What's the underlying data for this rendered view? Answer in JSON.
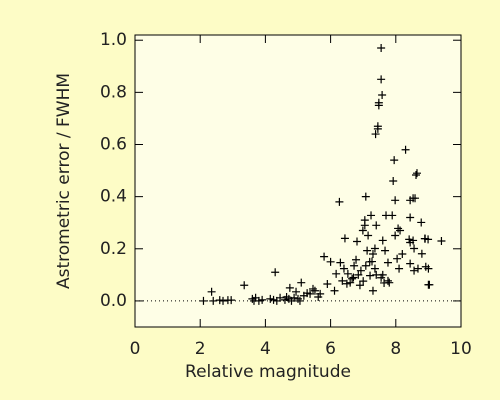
{
  "chart_data": {
    "type": "scatter",
    "x_label": "Relative magnitude",
    "y_label": "Astrometric error / FWHM",
    "marker": "plus",
    "color": "#000000",
    "hline": 0,
    "xlim": [
      0,
      10
    ],
    "ylim": [
      -0.1,
      1.02
    ],
    "xticks": [
      0,
      2,
      4,
      6,
      8,
      10
    ],
    "yticks": [
      {
        "value": 0,
        "label": "0.0"
      },
      {
        "value": 0.2,
        "label": "0.2"
      },
      {
        "value": 0.4,
        "label": "0.4"
      },
      {
        "value": 0.6,
        "label": "0.6"
      },
      {
        "value": 0.8,
        "label": "0.8"
      },
      {
        "value": 1,
        "label": "1.0"
      }
    ],
    "x": [
      2.1,
      2.35,
      2.4,
      2.6,
      2.7,
      2.85,
      2.95,
      3.35,
      3.6,
      3.65,
      3.7,
      3.8,
      3.9,
      4.15,
      4.25,
      4.3,
      4.35,
      4.45,
      4.6,
      4.65,
      4.72,
      4.75,
      4.8,
      4.88,
      4.94,
      5.0,
      5.1,
      5.06,
      5.18,
      5.28,
      5.37,
      5.46,
      5.52,
      5.62,
      5.68,
      5.8,
      5.9,
      6.0,
      6.12,
      6.17,
      6.3,
      6.36,
      6.41,
      6.5,
      6.27,
      6.44,
      6.53,
      6.6,
      6.66,
      6.72,
      6.78,
      6.81,
      6.93,
      6.99,
      7.05,
      7.05,
      7.08,
      7.12,
      7.15,
      7.21,
      7.08,
      7.24,
      7.27,
      7.3,
      7.36,
      7.36,
      7.4,
      7.38,
      7.45,
      7.45,
      7.48,
      7.48,
      7.55,
      7.55,
      7.58,
      7.55,
      7.6,
      7.64,
      7.67,
      7.7,
      7.76,
      7.76,
      7.92,
      7.95,
      7.89,
      7.98,
      7.98,
      8.04,
      8.07,
      8.1,
      8.13,
      8.3,
      8.41,
      8.44,
      8.44,
      8.44,
      8.44,
      8.53,
      8.53,
      8.56,
      8.62,
      8.65,
      8.68,
      8.78,
      8.8,
      8.89,
      8.92,
      8.9,
      8.99,
      9.0,
      9.0,
      9.03,
      8.59,
      9.4,
      8.56,
      7.0,
      7.2,
      6.9,
      7.4,
      7.6,
      7.8,
      8.2,
      6.7,
      6.85,
      7.3
    ],
    "y": [
      0.0,
      0.035,
      0.0,
      0.003,
      0.0,
      0.003,
      0.003,
      0.06,
      0.008,
      0.0,
      0.012,
      0.0,
      0.004,
      0.008,
      0.004,
      0.11,
      0.0,
      0.012,
      0.004,
      0.015,
      0.008,
      0.05,
      0.0,
      0.012,
      0.035,
      0.008,
      0.07,
      0.0,
      0.02,
      0.03,
      0.027,
      0.046,
      0.039,
      0.015,
      0.027,
      0.17,
      0.065,
      0.15,
      0.039,
      0.104,
      0.147,
      0.077,
      0.124,
      0.066,
      0.38,
      0.24,
      0.104,
      0.07,
      0.085,
      0.135,
      0.158,
      0.228,
      0.116,
      0.27,
      0.29,
      0.31,
      0.135,
      0.193,
      0.251,
      0.097,
      0.4,
      0.328,
      0.151,
      0.039,
      0.124,
      0.201,
      0.29,
      0.64,
      0.67,
      0.66,
      0.75,
      0.76,
      0.97,
      0.85,
      0.79,
      0.089,
      0.232,
      0.069,
      0.193,
      0.328,
      0.147,
      0.077,
      0.46,
      0.54,
      0.328,
      0.386,
      0.251,
      0.162,
      0.278,
      0.124,
      0.27,
      0.58,
      0.236,
      0.143,
      0.32,
      0.386,
      0.224,
      0.394,
      0.232,
      0.116,
      0.483,
      0.49,
      0.124,
      0.301,
      0.181,
      0.239,
      0.131,
      0.239,
      0.236,
      0.124,
      0.062,
      0.062,
      0.394,
      0.23,
      0.201,
      0.076,
      0.15,
      0.06,
      0.1,
      0.1,
      0.07,
      0.18,
      0.09,
      0.1,
      0.18
    ]
  }
}
